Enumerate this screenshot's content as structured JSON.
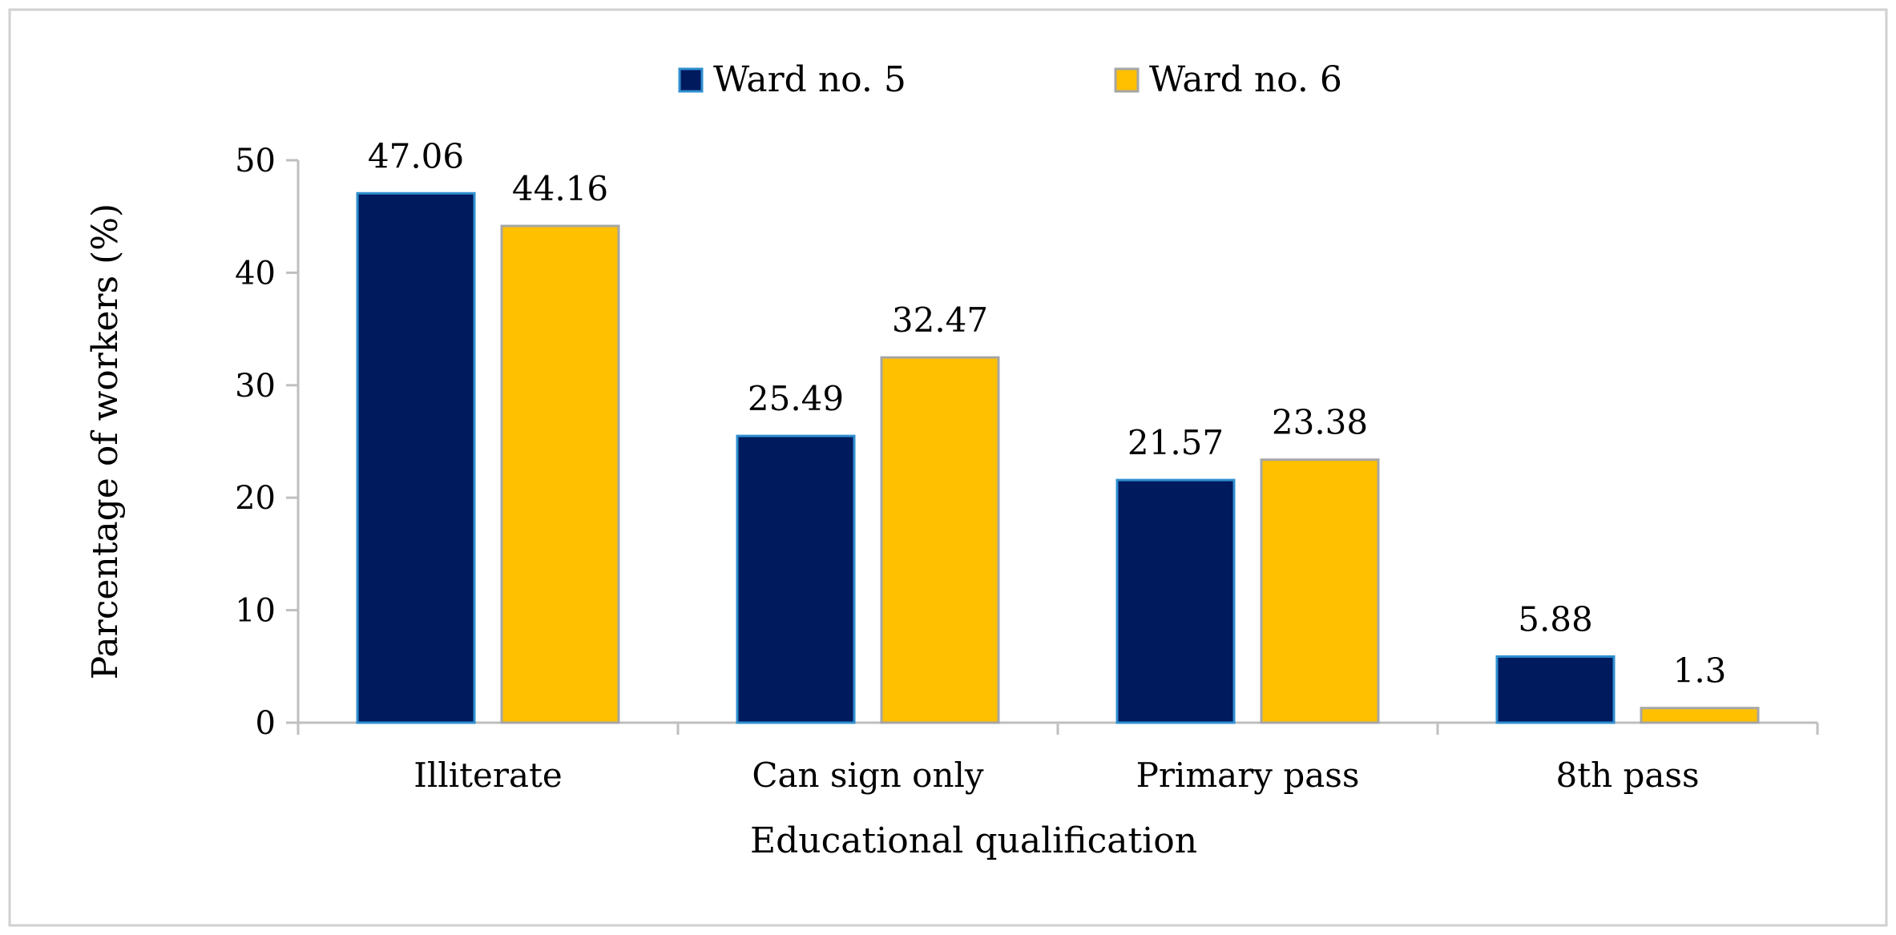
{
  "chart_data": {
    "type": "bar",
    "title": "",
    "xlabel": "Educational qualification",
    "ylabel": "Parcentage of workers (%)",
    "categories": [
      "Illiterate",
      "Can sign only",
      "Primary pass",
      "8th pass"
    ],
    "series": [
      {
        "name": "Ward no. 5",
        "color": "#001a5e",
        "edge": "#2f8fd0",
        "values": [
          47.06,
          25.49,
          21.57,
          5.88
        ],
        "labels": [
          "47.06",
          "25.49",
          "21.57",
          "5.88"
        ]
      },
      {
        "name": "Ward no. 6",
        "color": "#ffc000",
        "edge": "#a6a6a6",
        "values": [
          44.16,
          32.47,
          23.38,
          1.3
        ],
        "labels": [
          "44.16",
          "32.47",
          "23.38",
          "1.3"
        ]
      }
    ],
    "ylim": [
      0,
      50
    ],
    "yticks": [
      0,
      10,
      20,
      30,
      40,
      50
    ],
    "ytick_labels": [
      "0",
      "10",
      "20",
      "30",
      "40",
      "50"
    ],
    "grid": false,
    "legend": "top-center"
  }
}
